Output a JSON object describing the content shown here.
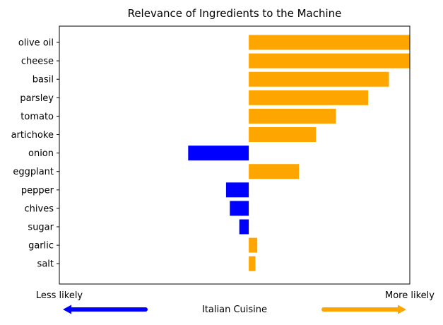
{
  "chart_data": {
    "type": "bar",
    "orientation": "horizontal",
    "title": "Relevance of Ingredients to the Machine",
    "categories": [
      "olive oil",
      "cheese",
      "basil",
      "parsley",
      "tomato",
      "artichoke",
      "onion",
      "eggplant",
      "pepper",
      "chives",
      "sugar",
      "garlic",
      "salt"
    ],
    "values": [
      0.85,
      0.85,
      0.74,
      0.63,
      0.46,
      0.355,
      -0.32,
      0.265,
      -0.12,
      -0.1,
      -0.05,
      0.045,
      0.035
    ],
    "xlim": [
      -1.0,
      0.85
    ],
    "grid": false,
    "colors": {
      "positive": "#ffa500",
      "negative": "#0000ff"
    },
    "axis_labels": {
      "left": "Less likely",
      "right": "More likely",
      "center": "Italian Cuisine"
    },
    "arrows": [
      {
        "direction": "left",
        "color": "#0000ff"
      },
      {
        "direction": "right",
        "color": "#ffa500"
      }
    ]
  }
}
